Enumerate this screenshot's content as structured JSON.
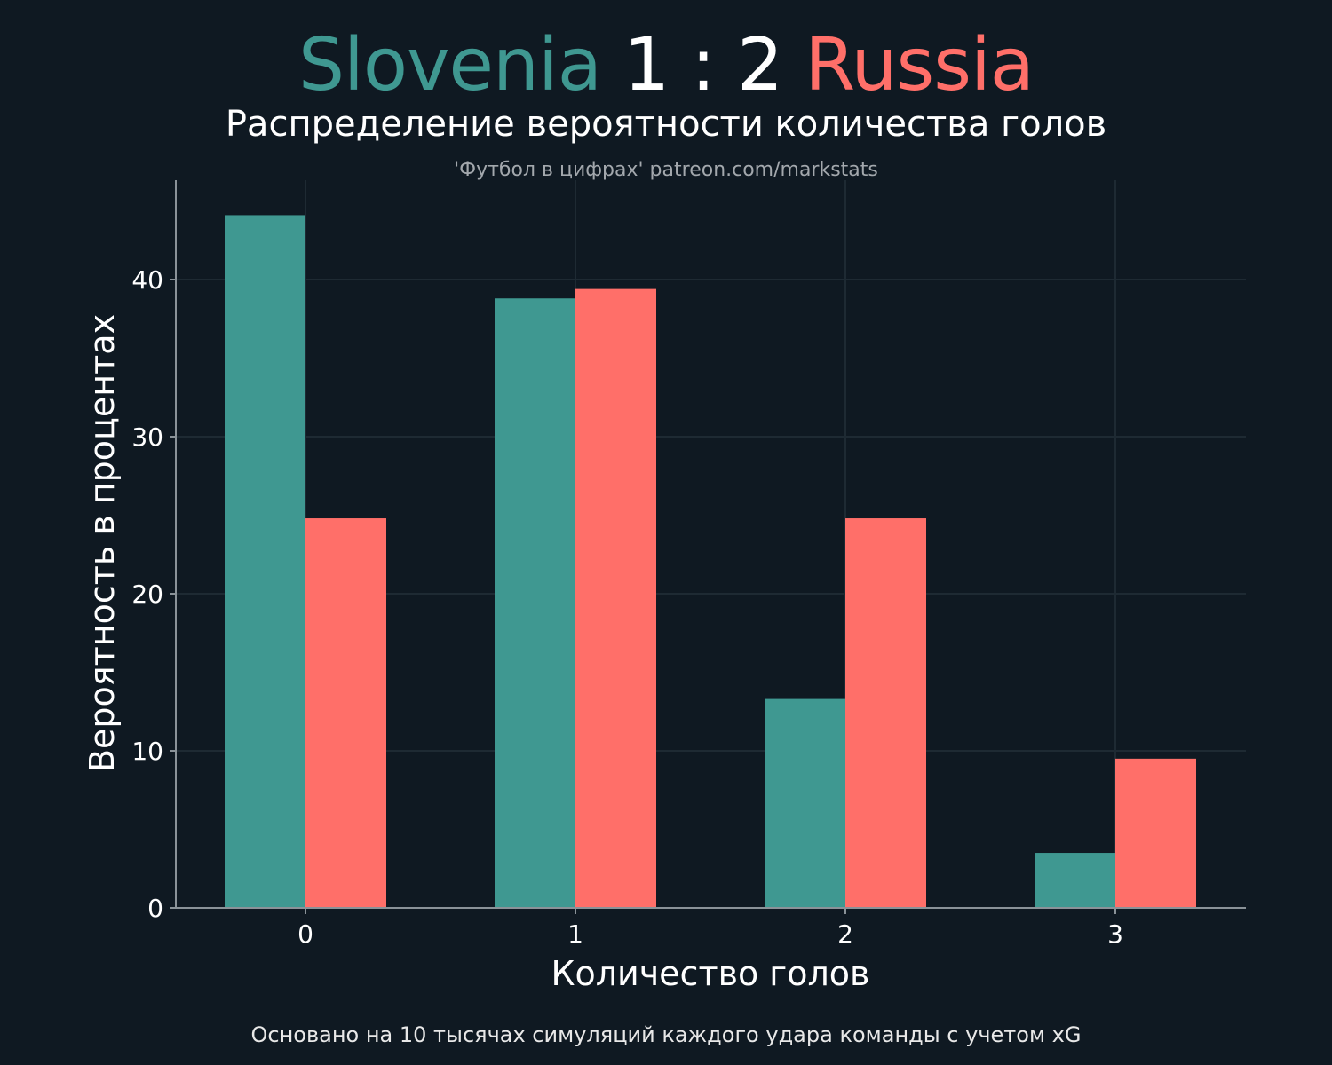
{
  "header": {
    "home_team": "Slovenia",
    "score": "1 : 2",
    "away_team": "Russia",
    "subtitle": "Распределение вероятности количества голов",
    "source": "'Футбол в цифрах' patreon.com/markstats"
  },
  "footnote": "Основано на 10 тысячах симуляций каждого удара команды с учетом xG",
  "colors": {
    "background": "#0f1922",
    "home": "#3f9891",
    "away": "#ff6f69",
    "score": "#ffffff",
    "grid": "#1e2a33",
    "axis": "#8a9298"
  },
  "chart_data": {
    "type": "bar",
    "categories": [
      "0",
      "1",
      "2",
      "3"
    ],
    "series": [
      {
        "name": "Slovenia",
        "values": [
          44.1,
          38.8,
          13.3,
          3.5
        ]
      },
      {
        "name": "Russia",
        "values": [
          24.8,
          39.4,
          24.8,
          9.5
        ]
      }
    ],
    "xlabel": "Количество голов",
    "ylabel": "Вероятность в процентах",
    "yticks": [
      0,
      10,
      20,
      30,
      40
    ],
    "ylim": [
      0,
      46.3
    ],
    "grid": true,
    "legend": "none"
  }
}
